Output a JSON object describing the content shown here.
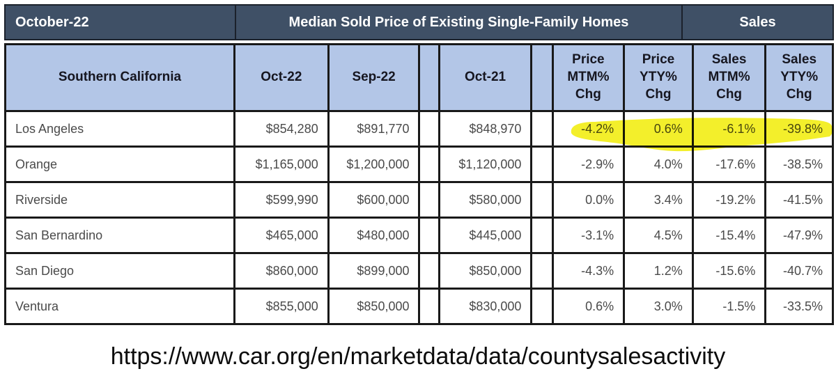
{
  "banner": {
    "date_label": "October-22",
    "price_title": "Median Sold Price of Existing Single-Family Homes",
    "sales_title": "Sales"
  },
  "header": {
    "region": "Southern California",
    "col_oct22": "Oct-22",
    "col_sep22": "Sep-22",
    "col_oct21": "Oct-21",
    "col_price_mtm": "Price\nMTM%\nChg",
    "col_price_yty": "Price\nYTY%\nChg",
    "col_sales_mtm": "Sales\nMTM%\nChg",
    "col_sales_yty": "Sales\nYTY%\nChg"
  },
  "chart_data": {
    "type": "table",
    "title": "Median Sold Price of Existing Single-Family Homes",
    "period": "October-22",
    "region_label": "Southern California",
    "group_headers": [
      "Median Sold Price of Existing Single-Family Homes",
      "Sales"
    ],
    "columns": [
      "Southern California",
      "Oct-22",
      "Sep-22",
      "Oct-21",
      "Price MTM% Chg",
      "Price YTY% Chg",
      "Sales MTM% Chg",
      "Sales YTY% Chg"
    ],
    "rows": [
      {
        "county": "Los Angeles",
        "oct22": "$854,280",
        "sep22": "$891,770",
        "oct21": "$848,970",
        "price_mtm": "-4.2%",
        "price_yty": "0.6%",
        "sales_mtm": "-6.1%",
        "sales_yty": "-39.8%",
        "highlighted": true
      },
      {
        "county": "Orange",
        "oct22": "$1,165,000",
        "sep22": "$1,200,000",
        "oct21": "$1,120,000",
        "price_mtm": "-2.9%",
        "price_yty": "4.0%",
        "sales_mtm": "-17.6%",
        "sales_yty": "-38.5%",
        "highlighted": false
      },
      {
        "county": "Riverside",
        "oct22": "$599,990",
        "sep22": "$600,000",
        "oct21": "$580,000",
        "price_mtm": "0.0%",
        "price_yty": "3.4%",
        "sales_mtm": "-19.2%",
        "sales_yty": "-41.5%",
        "highlighted": false
      },
      {
        "county": "San Bernardino",
        "oct22": "$465,000",
        "sep22": "$480,000",
        "oct21": "$445,000",
        "price_mtm": "-3.1%",
        "price_yty": "4.5%",
        "sales_mtm": "-15.4%",
        "sales_yty": "-47.9%",
        "highlighted": false
      },
      {
        "county": "San Diego",
        "oct22": "$860,000",
        "sep22": "$899,000",
        "oct21": "$850,000",
        "price_mtm": "-4.3%",
        "price_yty": "1.2%",
        "sales_mtm": "-15.6%",
        "sales_yty": "-40.7%",
        "highlighted": false
      },
      {
        "county": "Ventura",
        "oct22": "$855,000",
        "sep22": "$850,000",
        "oct21": "$830,000",
        "price_mtm": "0.6%",
        "price_yty": "3.0%",
        "sales_mtm": "-1.5%",
        "sales_yty": "-33.5%",
        "highlighted": false
      }
    ],
    "highlight": {
      "row": "Los Angeles",
      "columns": [
        "Price MTM% Chg",
        "Price YTY% Chg",
        "Sales MTM% Chg",
        "Sales YTY% Chg"
      ],
      "style": "yellow-marker"
    },
    "source_url": "https://www.car.org/en/marketdata/data/countysalesactivity"
  },
  "footer": {
    "url": "https://www.car.org/en/marketdata/data/countysalesactivity"
  },
  "colors": {
    "banner_bg": "#3f5066",
    "header_bg": "#b3c6e7",
    "border": "#191919",
    "body_text": "#4a4a4a",
    "highlight_yellow": "#f1ed0e"
  }
}
